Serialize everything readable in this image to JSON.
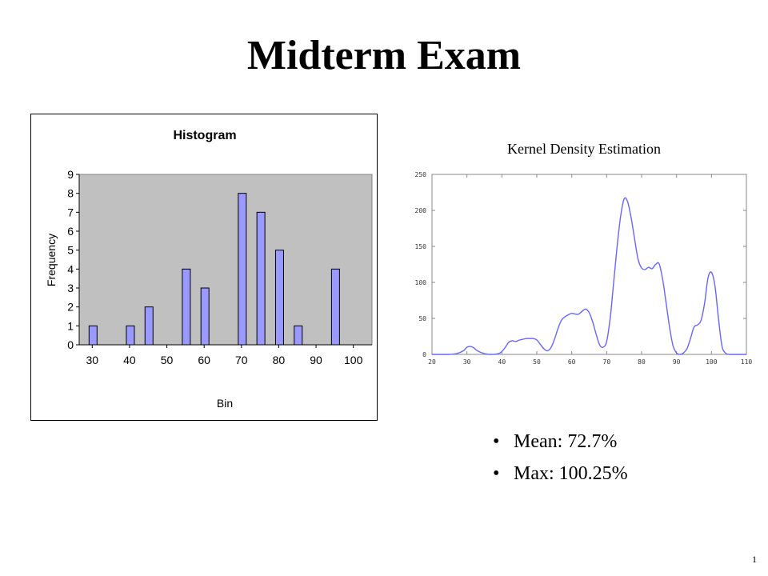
{
  "slide": {
    "title": "Midterm Exam",
    "number": "1"
  },
  "stats": [
    {
      "label": "Mean: 72.7%"
    },
    {
      "label": "Max: 100.25%"
    }
  ],
  "chart_data": [
    {
      "type": "bar",
      "title": "Histogram",
      "xlabel": "Bin",
      "ylabel": "Frequency",
      "categories": [
        30,
        35,
        40,
        45,
        50,
        55,
        60,
        65,
        70,
        75,
        80,
        85,
        90,
        95,
        100
      ],
      "values": [
        1,
        0,
        1,
        2,
        0,
        4,
        3,
        0,
        8,
        7,
        5,
        1,
        0,
        4,
        0
      ],
      "x_tick_labels": [
        "30",
        "40",
        "50",
        "60",
        "70",
        "80",
        "90",
        "100"
      ],
      "y_tick_labels": [
        "0",
        "1",
        "2",
        "3",
        "4",
        "5",
        "6",
        "7",
        "8",
        "9"
      ],
      "ylim": [
        0,
        9
      ],
      "grid": false,
      "legend": "none",
      "colors": {
        "bar": "#9999ff",
        "plot_bg": "#c0c0c0"
      }
    },
    {
      "type": "line",
      "title": "Kernel Density Estimation",
      "xlabel": "",
      "ylabel": "",
      "xlim": [
        20,
        110
      ],
      "ylim": [
        0,
        250
      ],
      "x_tick_labels": [
        "20",
        "30",
        "40",
        "50",
        "60",
        "70",
        "80",
        "90",
        "100",
        "110"
      ],
      "y_tick_labels": [
        "0",
        "50",
        "100",
        "150",
        "200",
        "250"
      ],
      "series": [
        {
          "x": [
            20,
            25,
            27,
            29,
            30,
            31,
            32,
            33,
            35,
            37,
            39,
            40,
            41,
            42,
            43,
            44,
            45,
            46,
            47,
            48,
            49,
            50,
            51,
            52,
            53,
            54,
            55,
            56,
            57,
            58,
            59,
            60,
            61,
            62,
            63,
            64,
            65,
            66,
            67,
            68,
            69,
            70,
            71,
            72,
            73,
            74,
            75,
            76,
            77,
            78,
            79,
            80,
            81,
            82,
            83,
            84,
            85,
            86,
            87,
            88,
            89,
            90,
            91,
            92,
            93,
            94,
            95,
            96,
            97,
            98,
            99,
            100,
            101,
            102,
            103,
            104,
            105,
            106,
            107,
            110
          ],
          "y": [
            0,
            0,
            1,
            5,
            10,
            11,
            9,
            5,
            1,
            0,
            1,
            4,
            10,
            17,
            19,
            18,
            20,
            21,
            22,
            22,
            22,
            20,
            14,
            8,
            5,
            9,
            20,
            35,
            47,
            52,
            55,
            57,
            56,
            56,
            60,
            63,
            58,
            45,
            28,
            13,
            10,
            18,
            50,
            100,
            150,
            192,
            216,
            212,
            190,
            160,
            132,
            120,
            118,
            121,
            119,
            125,
            126,
            105,
            72,
            38,
            12,
            2,
            0,
            2,
            8,
            22,
            38,
            41,
            47,
            70,
            106,
            114,
            95,
            50,
            12,
            2,
            0,
            0,
            0,
            0
          ]
        }
      ],
      "grid": false,
      "legend": "none",
      "colors": {
        "line": "#6666ff",
        "axis": "#888888"
      }
    }
  ]
}
